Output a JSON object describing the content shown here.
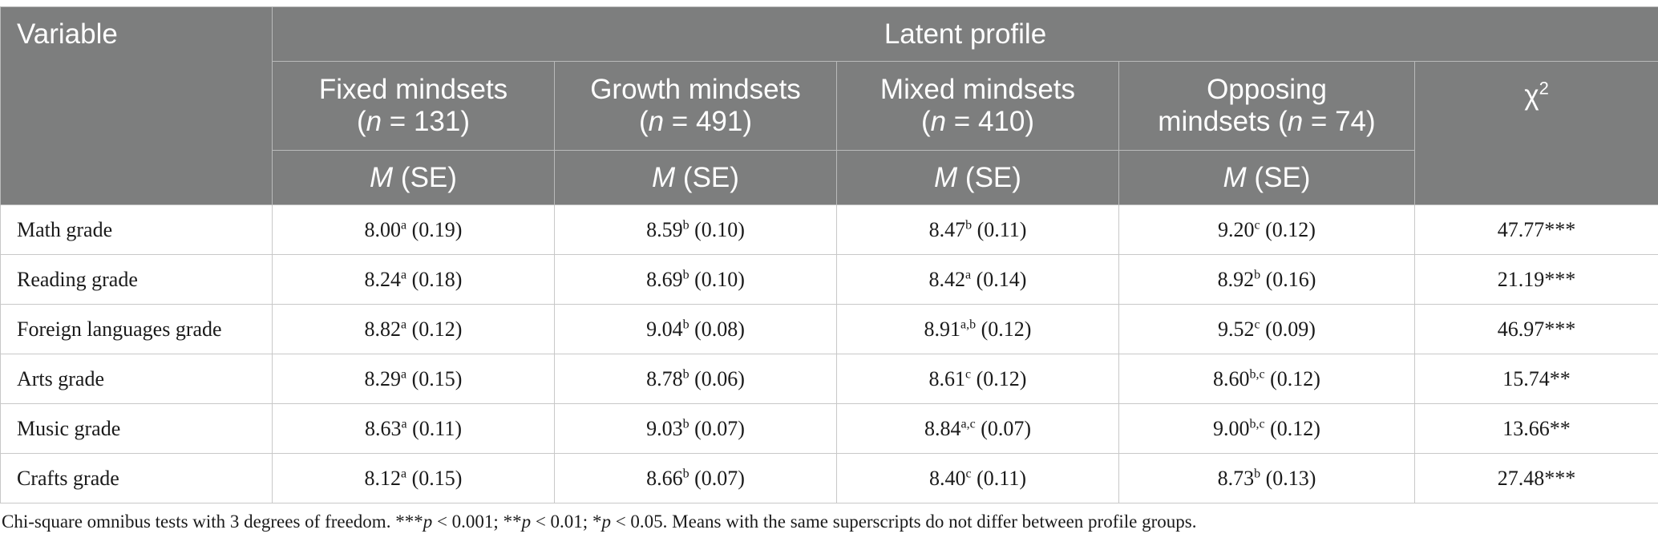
{
  "header": {
    "variable": "Variable",
    "latent_profile": "Latent profile",
    "groups": [
      {
        "name_line1": "Fixed mindsets",
        "name_line2_pre": "(",
        "n_label": "n",
        "name_line2_post": " = 131)",
        "stat": "M",
        "stat_suffix": " (SE)"
      },
      {
        "name_line1": "Growth mindsets",
        "name_line2_pre": "(",
        "n_label": "n",
        "name_line2_post": " = 491)",
        "stat": "M",
        "stat_suffix": " (SE)"
      },
      {
        "name_line1": "Mixed mindsets",
        "name_line2_pre": "(",
        "n_label": "n",
        "name_line2_post": " = 410)",
        "stat": "M",
        "stat_suffix": " (SE)"
      },
      {
        "name_line1": "Opposing",
        "name_line2_pre": "mindsets (",
        "n_label": "n",
        "name_line2_post": " = 74)",
        "stat": "M",
        "stat_suffix": " (SE)"
      }
    ],
    "chi_symbol": "χ",
    "chi_sup": "2"
  },
  "rows": [
    {
      "label": "Math grade",
      "cells": [
        {
          "m": "8.00",
          "sup": "a",
          "se": " (0.19)"
        },
        {
          "m": "8.59",
          "sup": "b",
          "se": " (0.10)"
        },
        {
          "m": "8.47",
          "sup": "b",
          "se": " (0.11)"
        },
        {
          "m": "9.20",
          "sup": "c",
          "se": " (0.12)"
        }
      ],
      "chi": "47.77***"
    },
    {
      "label": "Reading grade",
      "cells": [
        {
          "m": "8.24",
          "sup": "a",
          "se": " (0.18)"
        },
        {
          "m": "8.69",
          "sup": "b",
          "se": " (0.10)"
        },
        {
          "m": "8.42",
          "sup": "a",
          "se": " (0.14)"
        },
        {
          "m": "8.92",
          "sup": "b",
          "se": " (0.16)"
        }
      ],
      "chi": "21.19***"
    },
    {
      "label": "Foreign languages grade",
      "cells": [
        {
          "m": "8.82",
          "sup": "a",
          "se": " (0.12)"
        },
        {
          "m": "9.04",
          "sup": "b",
          "se": " (0.08)"
        },
        {
          "m": "8.91",
          "sup": "a,b",
          "se": " (0.12)"
        },
        {
          "m": "9.52",
          "sup": "c",
          "se": " (0.09)"
        }
      ],
      "chi": "46.97***"
    },
    {
      "label": "Arts grade",
      "cells": [
        {
          "m": "8.29",
          "sup": "a",
          "se": " (0.15)"
        },
        {
          "m": "8.78",
          "sup": "b",
          "se": " (0.06)"
        },
        {
          "m": "8.61",
          "sup": "c",
          "se": " (0.12)"
        },
        {
          "m": "8.60",
          "sup": "b,c",
          "se": " (0.12)"
        }
      ],
      "chi": "15.74**"
    },
    {
      "label": "Music grade",
      "cells": [
        {
          "m": "8.63",
          "sup": "a",
          "se": " (0.11)"
        },
        {
          "m": "9.03",
          "sup": "b",
          "se": " (0.07)"
        },
        {
          "m": "8.84",
          "sup": "a,c",
          "se": " (0.07)"
        },
        {
          "m": "9.00",
          "sup": "b,c",
          "se": " (0.12)"
        }
      ],
      "chi": "13.66**"
    },
    {
      "label": "Crafts grade",
      "cells": [
        {
          "m": "8.12",
          "sup": "a",
          "se": " (0.15)"
        },
        {
          "m": "8.66",
          "sup": "b",
          "se": " (0.07)"
        },
        {
          "m": "8.40",
          "sup": "c",
          "se": " (0.11)"
        },
        {
          "m": "8.73",
          "sup": "b",
          "se": " (0.13)"
        }
      ],
      "chi": "27.48***"
    }
  ],
  "note": {
    "part1": "Chi-square omnibus tests with 3 degrees of freedom. ***",
    "p1": "p",
    "part2": " < 0.001; **",
    "p2": "p",
    "part3": " < 0.01; *",
    "p3": "p",
    "part4": " < 0.05. Means with the same superscripts do not differ between profile groups."
  }
}
